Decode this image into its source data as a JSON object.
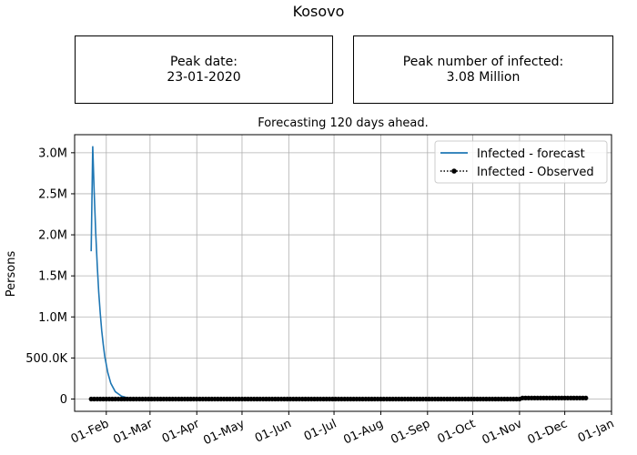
{
  "figure": {
    "title": "Kosovo"
  },
  "info_boxes": {
    "peak_date": {
      "label": "Peak date:",
      "value": "23-01-2020"
    },
    "peak_infected": {
      "label": "Peak number of infected:",
      "value": "3.08 Million"
    }
  },
  "chart_data": {
    "type": "line",
    "title": "Forecasting 120 days ahead.",
    "xlabel": "",
    "ylabel": "Persons",
    "x_axis_type": "date",
    "xlim": [
      "2020-01-11",
      "2021-01-01"
    ],
    "ylim": [
      -150000,
      3220000
    ],
    "grid": true,
    "legend_position": "top-right",
    "x_ticks": [
      {
        "date": "2020-02-01",
        "label": "01-Feb"
      },
      {
        "date": "2020-03-01",
        "label": "01-Mar"
      },
      {
        "date": "2020-04-01",
        "label": "01-Apr"
      },
      {
        "date": "2020-05-01",
        "label": "01-May"
      },
      {
        "date": "2020-06-01",
        "label": "01-Jun"
      },
      {
        "date": "2020-07-01",
        "label": "01-Jul"
      },
      {
        "date": "2020-08-01",
        "label": "01-Aug"
      },
      {
        "date": "2020-09-01",
        "label": "01-Sep"
      },
      {
        "date": "2020-10-01",
        "label": "01-Oct"
      },
      {
        "date": "2020-11-01",
        "label": "01-Nov"
      },
      {
        "date": "2020-12-01",
        "label": "01-Dec"
      },
      {
        "date": "2021-01-01",
        "label": "01-Jan"
      }
    ],
    "y_ticks": [
      {
        "value": 0,
        "label": "0"
      },
      {
        "value": 500000,
        "label": "500.0K"
      },
      {
        "value": 1000000,
        "label": "1.0M"
      },
      {
        "value": 1500000,
        "label": "1.5M"
      },
      {
        "value": 2000000,
        "label": "2.0M"
      },
      {
        "value": 2500000,
        "label": "2.5M"
      },
      {
        "value": 3000000,
        "label": "3.0M"
      }
    ],
    "series": [
      {
        "name": "Infected - forecast",
        "color": "#1f77b4",
        "style": "solid",
        "points": [
          {
            "x": "2020-01-22",
            "y": 1800000
          },
          {
            "x": "2020-01-23",
            "y": 3080000
          },
          {
            "x": "2020-01-24",
            "y": 2520000
          },
          {
            "x": "2020-01-25",
            "y": 2020000
          },
          {
            "x": "2020-01-26",
            "y": 1620000
          },
          {
            "x": "2020-01-27",
            "y": 1300000
          },
          {
            "x": "2020-01-28",
            "y": 1040000
          },
          {
            "x": "2020-01-29",
            "y": 830000
          },
          {
            "x": "2020-01-30",
            "y": 660000
          },
          {
            "x": "2020-01-31",
            "y": 520000
          },
          {
            "x": "2020-02-02",
            "y": 320000
          },
          {
            "x": "2020-02-04",
            "y": 190000
          },
          {
            "x": "2020-02-07",
            "y": 90000
          },
          {
            "x": "2020-02-11",
            "y": 35000
          },
          {
            "x": "2020-02-16",
            "y": 10000
          },
          {
            "x": "2020-02-23",
            "y": 2000
          },
          {
            "x": "2020-03-05",
            "y": 0
          },
          {
            "x": "2020-12-15",
            "y": 0
          }
        ]
      },
      {
        "name": "Infected - Observed",
        "color": "#000000",
        "style": "dotted-marker",
        "points": [
          {
            "x": "2020-01-22",
            "y": 0
          },
          {
            "x": "2020-11-01",
            "y": 0
          },
          {
            "x": "2020-11-02",
            "y": 12000
          },
          {
            "x": "2020-12-15",
            "y": 12000
          }
        ]
      }
    ]
  }
}
